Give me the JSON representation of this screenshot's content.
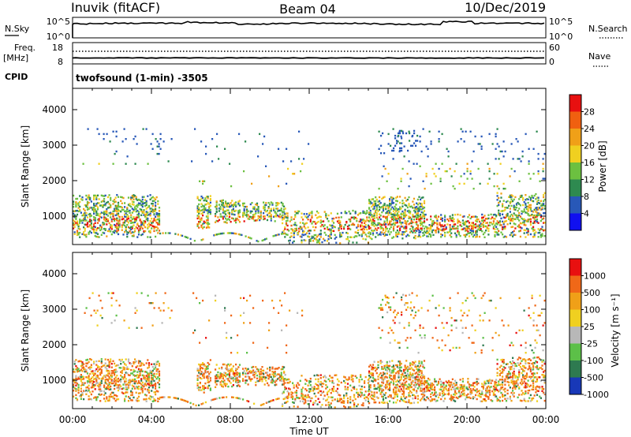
{
  "header": {
    "station": "Inuvik (fitACF)",
    "beam": "Beam 04",
    "date": "10/Dec/2019"
  },
  "top_panels": {
    "nsky_label": "N.Sky",
    "nsky_ticks": [
      "10^5",
      "10^0"
    ],
    "nsearch_label": "N.Search",
    "nsearch_ticks": [
      "10^5",
      "10^0"
    ],
    "freq_label": "Freq.",
    "freq_unit": "[MHz]",
    "freq_ticks": [
      "18",
      "8"
    ],
    "nave_label": "Nave",
    "nave_ticks": [
      "60",
      "0"
    ],
    "cpid_label": "CPID",
    "cpid_value": "twofsound (1-min) -3505"
  },
  "chart_data": [
    {
      "type": "heatmap",
      "name": "power",
      "ylabel": "Slant Range [km]",
      "yticks": [
        1000,
        2000,
        3000,
        4000
      ],
      "ylim": [
        200,
        4600
      ],
      "colorbar_label": "Power [dB]",
      "colorbar_ticks": [
        "4",
        "8",
        "12",
        "16",
        "20",
        "24",
        "28"
      ],
      "colors": [
        "#1010f0",
        "#2858b8",
        "#2e8a50",
        "#6cc040",
        "#f0d020",
        "#f0a018",
        "#f06010",
        "#e81010"
      ]
    },
    {
      "type": "heatmap",
      "name": "velocity",
      "ylabel": "Slant Range [km]",
      "yticks": [
        1000,
        2000,
        3000,
        4000
      ],
      "ylim": [
        200,
        4600
      ],
      "colorbar_label": "Velocity [m s⁻¹]",
      "colorbar_ticks": [
        "1000",
        "500",
        "100",
        "25",
        "-25",
        "-100",
        "-500",
        "-1000"
      ],
      "colors": [
        "#1838b8",
        "#2e7a50",
        "#5cc048",
        "#b8b8b8",
        "#f0d020",
        "#f0a018",
        "#f06818",
        "#e81010"
      ]
    }
  ],
  "time_axis": {
    "ticks": [
      "00:00",
      "04:00",
      "08:00",
      "12:00",
      "16:00",
      "20:00",
      "00:00"
    ],
    "xlabel": "Time UT"
  }
}
